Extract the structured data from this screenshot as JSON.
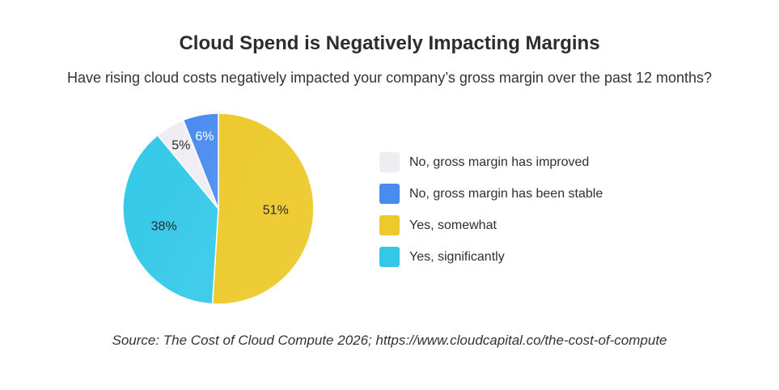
{
  "chart_data": {
    "type": "pie",
    "title": "Cloud Spend is Negatively Impacting Margins",
    "subtitle": "Have rising cloud costs negatively impacted your company’s gross margin over the past 12 months?",
    "slices": [
      {
        "label": "Yes, somewhat",
        "value": 51,
        "display": "51%",
        "color": "#ecc92c",
        "label_color": "#2b2b2b"
      },
      {
        "label": "Yes, significantly",
        "value": 38,
        "display": "38%",
        "color": "#33c8e8",
        "label_color": "#2b2b2b"
      },
      {
        "label": "No, gross margin has improved",
        "value": 5,
        "display": "5%",
        "color": "#efedf1",
        "label_color": "#2b2b2b"
      },
      {
        "label": "No, gross margin has been stable",
        "value": 6,
        "display": "6%",
        "color": "#4a8bf0",
        "label_color": "#ffffff"
      }
    ],
    "legend": [
      {
        "label": "No, gross margin has improved",
        "color": "#efedf1"
      },
      {
        "label": "No, gross margin has been stable",
        "color": "#4a8bf0"
      },
      {
        "label": "Yes, somewhat",
        "color": "#ecc92c"
      },
      {
        "label": "Yes, significantly",
        "color": "#33c8e8"
      }
    ],
    "legend_position": "right",
    "source": "Source: The Cost of Cloud Compute 2026; https://www.cloudcapital.co/the-cost-of-compute"
  }
}
